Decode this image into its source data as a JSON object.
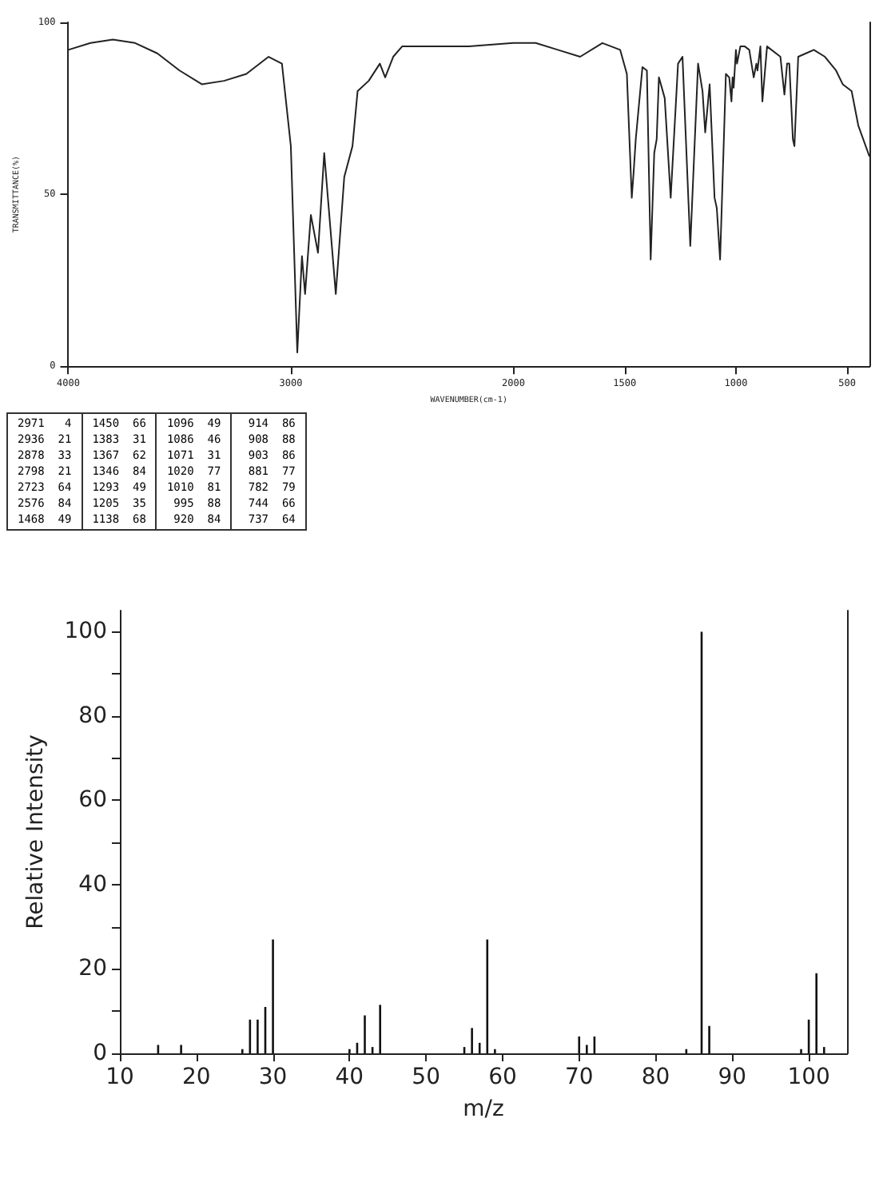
{
  "chart_data": [
    {
      "type": "line",
      "xlabel": "WAVENUMBER(cm-1)",
      "ylabel": "TRANSMITTANCE(%)",
      "xlim": [
        4000,
        400
      ],
      "xticks": [
        4000,
        3000,
        2000,
        1500,
        1000,
        500
      ],
      "ylim": [
        0,
        100
      ],
      "yticks": [
        0,
        50,
        100
      ],
      "grid": false,
      "marker": "none",
      "line_style": "solid",
      "series": [
        {
          "color": "#222222",
          "x": [
            4000,
            3900,
            3800,
            3700,
            3600,
            3500,
            3400,
            3300,
            3200,
            3100,
            3040,
            3000,
            2971,
            2950,
            2936,
            2910,
            2878,
            2850,
            2798,
            2760,
            2723,
            2700,
            2650,
            2600,
            2576,
            2540,
            2500,
            2400,
            2200,
            2000,
            1900,
            1800,
            1700,
            1600,
            1520,
            1490,
            1468,
            1460,
            1450,
            1420,
            1400,
            1383,
            1367,
            1356,
            1346,
            1320,
            1293,
            1260,
            1240,
            1205,
            1170,
            1150,
            1138,
            1118,
            1096,
            1086,
            1071,
            1045,
            1030,
            1020,
            1015,
            1010,
            1000,
            995,
            980,
            960,
            940,
            920,
            914,
            908,
            903,
            890,
            881,
            860,
            800,
            782,
            770,
            760,
            744,
            737,
            720,
            650,
            600,
            550,
            520,
            480,
            450,
            400
          ],
          "values": [
            92,
            94,
            95,
            94,
            91,
            86,
            82,
            83,
            85,
            90,
            88,
            64,
            4,
            32,
            21,
            44,
            33,
            62,
            21,
            55,
            64,
            80,
            83,
            88,
            84,
            90,
            93,
            93,
            93,
            94,
            94,
            92,
            90,
            94,
            92,
            85,
            49,
            56,
            66,
            87,
            86,
            31,
            62,
            66,
            84,
            78,
            49,
            88,
            90,
            35,
            88,
            80,
            68,
            82,
            49,
            46,
            31,
            85,
            84,
            77,
            84,
            81,
            92,
            88,
            93,
            93,
            92,
            84,
            86,
            88,
            86,
            93,
            77,
            93,
            90,
            79,
            88,
            88,
            66,
            64,
            90,
            92,
            90,
            86,
            82,
            80,
            70,
            61
          ]
        }
      ],
      "annotations": [
        "2971   4",
        "2936  21",
        "2878  33",
        "2798  21",
        "2723  64",
        "2576  84",
        "1468  49",
        "1450  66",
        "1383  31",
        "1367  62",
        "1346  84",
        "1293  49",
        "1205  35",
        "1138  68",
        "1096  49",
        "1086  46",
        "1071  31",
        "1020  77",
        "1010  81",
        " 995  88",
        " 920  84",
        " 914  86",
        " 908  88",
        " 903  86",
        " 881  77",
        " 782  79",
        " 744  66",
        " 737  64"
      ]
    },
    {
      "type": "bar",
      "xlabel": "m/z",
      "ylabel": "Relative Intensity",
      "xlim": [
        10,
        105
      ],
      "xticks": [
        10,
        20,
        30,
        40,
        50,
        60,
        70,
        80,
        90,
        100
      ],
      "ylim": [
        0,
        105
      ],
      "yticks": [
        0,
        {
          "value": 10,
          "label": null
        },
        20,
        {
          "value": 30,
          "label": null
        },
        40,
        {
          "value": 50,
          "label": null
        },
        60,
        {
          "value": 70,
          "label": null
        },
        80,
        {
          "value": 90,
          "label": null
        },
        100
      ],
      "grid": false,
      "series": [
        {
          "color": "#111111",
          "x": [
            15,
            18,
            26,
            27,
            28,
            29,
            30,
            40,
            41,
            42,
            43,
            44,
            55,
            56,
            57,
            58,
            59,
            70,
            71,
            72,
            84,
            86,
            87,
            99,
            100,
            101,
            102
          ],
          "values": [
            2,
            2,
            1,
            8,
            8,
            11,
            27,
            1,
            2.5,
            9,
            1.5,
            11.5,
            1.5,
            6,
            2.5,
            27,
            1,
            4,
            2,
            4,
            1,
            100,
            6.5,
            1,
            8,
            19,
            1.5
          ]
        }
      ]
    }
  ]
}
